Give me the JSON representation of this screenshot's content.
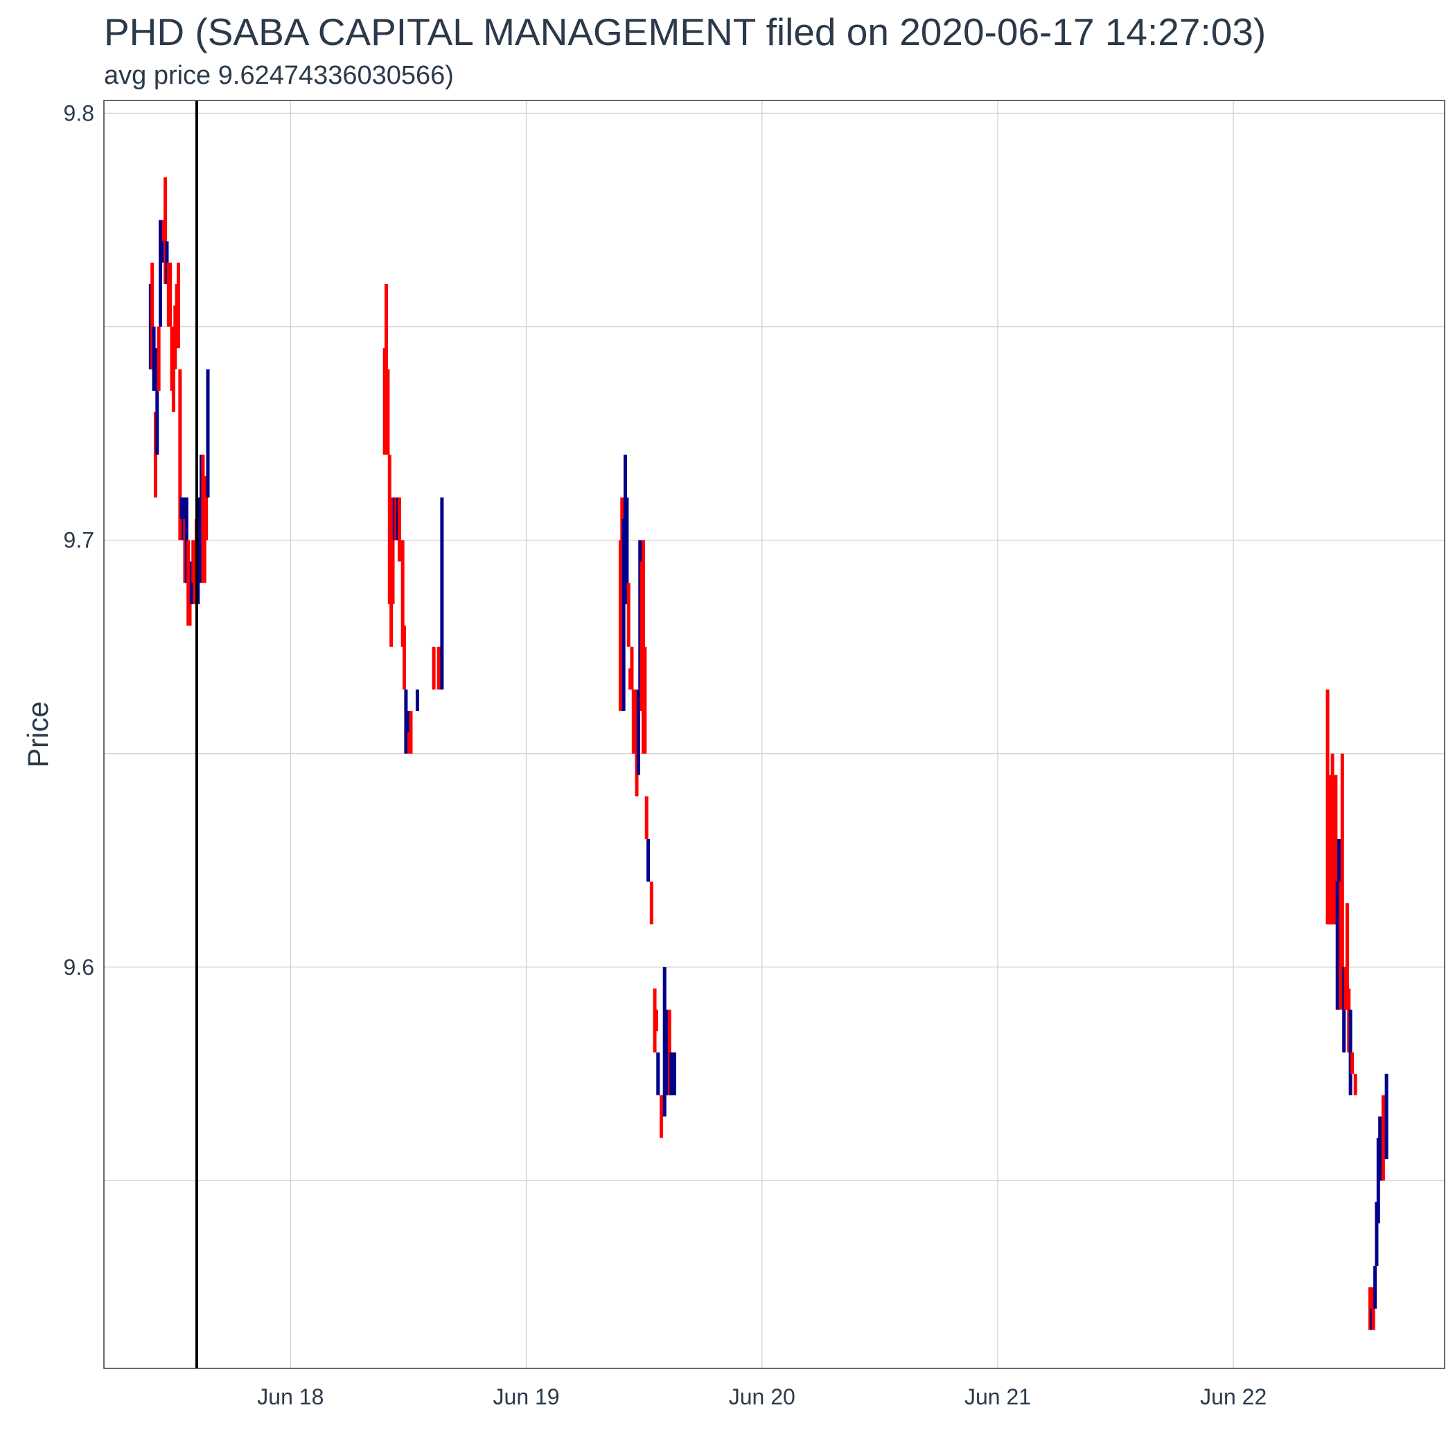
{
  "chart_data": {
    "type": "ohlc",
    "title": "PHD (SABA CAPITAL MANAGEMENT filed on 2020-06-17 14:27:03)",
    "subtitle": "avg price 9.62474336030566)",
    "ylabel": "Price",
    "xlabel": "",
    "ylim": [
      9.506,
      9.803
    ],
    "xlim": [
      "2020-06-17 05:00",
      "2020-06-22 21:30"
    ],
    "yticks": [
      9.6,
      9.7,
      9.8
    ],
    "ytick_labels": [
      "9.6",
      "9.7",
      "9.8"
    ],
    "xticks": [
      "2020-06-18 00:00",
      "2020-06-19 00:00",
      "2020-06-20 00:00",
      "2020-06-21 00:00",
      "2020-06-22 00:00"
    ],
    "xtick_labels": [
      "Jun 18",
      "Jun 19",
      "Jun 20",
      "Jun 21",
      "Jun 22"
    ],
    "filing_marker": "2020-06-17 14:27",
    "grid": true,
    "up_color": "#00008b",
    "down_color": "#ff0000",
    "bars": [
      {
        "t": "2020-06-17 09:45",
        "lo": 9.74,
        "hi": 9.76,
        "dir": "up"
      },
      {
        "t": "2020-06-17 09:55",
        "lo": 9.74,
        "hi": 9.765,
        "dir": "down"
      },
      {
        "t": "2020-06-17 10:05",
        "lo": 9.735,
        "hi": 9.75,
        "dir": "up"
      },
      {
        "t": "2020-06-17 10:15",
        "lo": 9.71,
        "hi": 9.73,
        "dir": "down"
      },
      {
        "t": "2020-06-17 10:25",
        "lo": 9.72,
        "hi": 9.745,
        "dir": "up"
      },
      {
        "t": "2020-06-17 10:35",
        "lo": 9.735,
        "hi": 9.75,
        "dir": "down"
      },
      {
        "t": "2020-06-17 10:45",
        "lo": 9.75,
        "hi": 9.775,
        "dir": "up"
      },
      {
        "t": "2020-06-17 10:55",
        "lo": 9.765,
        "hi": 9.775,
        "dir": "up"
      },
      {
        "t": "2020-06-17 11:05",
        "lo": 9.77,
        "hi": 9.775,
        "dir": "down"
      },
      {
        "t": "2020-06-17 11:15",
        "lo": 9.76,
        "hi": 9.785,
        "dir": "down"
      },
      {
        "t": "2020-06-17 11:25",
        "lo": 9.76,
        "hi": 9.77,
        "dir": "up"
      },
      {
        "t": "2020-06-17 11:35",
        "lo": 9.75,
        "hi": 9.765,
        "dir": "down"
      },
      {
        "t": "2020-06-17 11:45",
        "lo": 9.75,
        "hi": 9.765,
        "dir": "down"
      },
      {
        "t": "2020-06-17 11:55",
        "lo": 9.735,
        "hi": 9.75,
        "dir": "down"
      },
      {
        "t": "2020-06-17 12:05",
        "lo": 9.73,
        "hi": 9.74,
        "dir": "down"
      },
      {
        "t": "2020-06-17 12:15",
        "lo": 9.74,
        "hi": 9.755,
        "dir": "down"
      },
      {
        "t": "2020-06-17 12:25",
        "lo": 9.75,
        "hi": 9.76,
        "dir": "down"
      },
      {
        "t": "2020-06-17 12:35",
        "lo": 9.745,
        "hi": 9.765,
        "dir": "down"
      },
      {
        "t": "2020-06-17 12:45",
        "lo": 9.7,
        "hi": 9.74,
        "dir": "down"
      },
      {
        "t": "2020-06-17 12:55",
        "lo": 9.705,
        "hi": 9.71,
        "dir": "up"
      },
      {
        "t": "2020-06-17 13:05",
        "lo": 9.7,
        "hi": 9.71,
        "dir": "up"
      },
      {
        "t": "2020-06-17 13:15",
        "lo": 9.69,
        "hi": 9.705,
        "dir": "down"
      },
      {
        "t": "2020-06-17 13:25",
        "lo": 9.69,
        "hi": 9.71,
        "dir": "up"
      },
      {
        "t": "2020-06-17 13:35",
        "lo": 9.68,
        "hi": 9.7,
        "dir": "down"
      },
      {
        "t": "2020-06-17 13:45",
        "lo": 9.68,
        "hi": 9.695,
        "dir": "down"
      },
      {
        "t": "2020-06-17 13:55",
        "lo": 9.685,
        "hi": 9.695,
        "dir": "up"
      },
      {
        "t": "2020-06-17 14:05",
        "lo": 9.69,
        "hi": 9.7,
        "dir": "down"
      },
      {
        "t": "2020-06-17 14:15",
        "lo": 9.685,
        "hi": 9.7,
        "dir": "down"
      },
      {
        "t": "2020-06-17 14:25",
        "lo": 9.69,
        "hi": 9.705,
        "dir": "down"
      },
      {
        "t": "2020-06-17 14:35",
        "lo": 9.685,
        "hi": 9.71,
        "dir": "up"
      },
      {
        "t": "2020-06-17 14:45",
        "lo": 9.7,
        "hi": 9.71,
        "dir": "up"
      },
      {
        "t": "2020-06-17 14:55",
        "lo": 9.69,
        "hi": 9.72,
        "dir": "up"
      },
      {
        "t": "2020-06-17 15:05",
        "lo": 9.69,
        "hi": 9.72,
        "dir": "down"
      },
      {
        "t": "2020-06-17 15:15",
        "lo": 9.69,
        "hi": 9.715,
        "dir": "down"
      },
      {
        "t": "2020-06-17 15:25",
        "lo": 9.7,
        "hi": 9.715,
        "dir": "down"
      },
      {
        "t": "2020-06-17 15:35",
        "lo": 9.71,
        "hi": 9.74,
        "dir": "up"
      },
      {
        "t": "2020-06-18 09:35",
        "lo": 9.72,
        "hi": 9.745,
        "dir": "down"
      },
      {
        "t": "2020-06-18 09:45",
        "lo": 9.72,
        "hi": 9.76,
        "dir": "down"
      },
      {
        "t": "2020-06-18 09:55",
        "lo": 9.72,
        "hi": 9.74,
        "dir": "down"
      },
      {
        "t": "2020-06-18 10:05",
        "lo": 9.685,
        "hi": 9.72,
        "dir": "down"
      },
      {
        "t": "2020-06-18 10:15",
        "lo": 9.675,
        "hi": 9.705,
        "dir": "down"
      },
      {
        "t": "2020-06-18 10:25",
        "lo": 9.685,
        "hi": 9.71,
        "dir": "down"
      },
      {
        "t": "2020-06-18 10:35",
        "lo": 9.7,
        "hi": 9.71,
        "dir": "up"
      },
      {
        "t": "2020-06-18 10:45",
        "lo": 9.7,
        "hi": 9.71,
        "dir": "down"
      },
      {
        "t": "2020-06-18 10:55",
        "lo": 9.7,
        "hi": 9.71,
        "dir": "up"
      },
      {
        "t": "2020-06-18 11:05",
        "lo": 9.695,
        "hi": 9.71,
        "dir": "down"
      },
      {
        "t": "2020-06-18 11:25",
        "lo": 9.675,
        "hi": 9.7,
        "dir": "down"
      },
      {
        "t": "2020-06-18 11:35",
        "lo": 9.665,
        "hi": 9.68,
        "dir": "down"
      },
      {
        "t": "2020-06-18 11:45",
        "lo": 9.65,
        "hi": 9.665,
        "dir": "up"
      },
      {
        "t": "2020-06-18 11:55",
        "lo": 9.655,
        "hi": 9.66,
        "dir": "up"
      },
      {
        "t": "2020-06-18 12:05",
        "lo": 9.65,
        "hi": 9.655,
        "dir": "down"
      },
      {
        "t": "2020-06-18 12:15",
        "lo": 9.65,
        "hi": 9.66,
        "dir": "down"
      },
      {
        "t": "2020-06-18 12:55",
        "lo": 9.66,
        "hi": 9.665,
        "dir": "up"
      },
      {
        "t": "2020-06-18 14:35",
        "lo": 9.665,
        "hi": 9.675,
        "dir": "down"
      },
      {
        "t": "2020-06-18 15:05",
        "lo": 9.665,
        "hi": 9.675,
        "dir": "down"
      },
      {
        "t": "2020-06-18 15:25",
        "lo": 9.665,
        "hi": 9.71,
        "dir": "up"
      },
      {
        "t": "2020-06-19 09:35",
        "lo": 9.66,
        "hi": 9.7,
        "dir": "down"
      },
      {
        "t": "2020-06-19 09:45",
        "lo": 9.69,
        "hi": 9.71,
        "dir": "down"
      },
      {
        "t": "2020-06-19 09:55",
        "lo": 9.66,
        "hi": 9.705,
        "dir": "up"
      },
      {
        "t": "2020-06-19 10:05",
        "lo": 9.685,
        "hi": 9.72,
        "dir": "up"
      },
      {
        "t": "2020-06-19 10:15",
        "lo": 9.685,
        "hi": 9.71,
        "dir": "up"
      },
      {
        "t": "2020-06-19 10:25",
        "lo": 9.675,
        "hi": 9.69,
        "dir": "down"
      },
      {
        "t": "2020-06-19 10:35",
        "lo": 9.665,
        "hi": 9.67,
        "dir": "down"
      },
      {
        "t": "2020-06-19 10:45",
        "lo": 9.665,
        "hi": 9.675,
        "dir": "down"
      },
      {
        "t": "2020-06-19 10:55",
        "lo": 9.65,
        "hi": 9.665,
        "dir": "down"
      },
      {
        "t": "2020-06-19 11:05",
        "lo": 9.65,
        "hi": 9.665,
        "dir": "down"
      },
      {
        "t": "2020-06-19 11:15",
        "lo": 9.64,
        "hi": 9.66,
        "dir": "down"
      },
      {
        "t": "2020-06-19 11:25",
        "lo": 9.645,
        "hi": 9.665,
        "dir": "up"
      },
      {
        "t": "2020-06-19 11:35",
        "lo": 9.665,
        "hi": 9.7,
        "dir": "up"
      },
      {
        "t": "2020-06-19 11:45",
        "lo": 9.66,
        "hi": 9.695,
        "dir": "down"
      },
      {
        "t": "2020-06-19 11:55",
        "lo": 9.65,
        "hi": 9.7,
        "dir": "down"
      },
      {
        "t": "2020-06-19 12:05",
        "lo": 9.65,
        "hi": 9.675,
        "dir": "down"
      },
      {
        "t": "2020-06-19 12:15",
        "lo": 9.63,
        "hi": 9.64,
        "dir": "down"
      },
      {
        "t": "2020-06-19 12:25",
        "lo": 9.62,
        "hi": 9.63,
        "dir": "up"
      },
      {
        "t": "2020-06-19 12:45",
        "lo": 9.61,
        "hi": 9.62,
        "dir": "down"
      },
      {
        "t": "2020-06-19 13:05",
        "lo": 9.58,
        "hi": 9.595,
        "dir": "down"
      },
      {
        "t": "2020-06-19 13:15",
        "lo": 9.585,
        "hi": 9.59,
        "dir": "down"
      },
      {
        "t": "2020-06-19 13:25",
        "lo": 9.57,
        "hi": 9.58,
        "dir": "up"
      },
      {
        "t": "2020-06-19 13:45",
        "lo": 9.56,
        "hi": 9.57,
        "dir": "down"
      },
      {
        "t": "2020-06-19 13:55",
        "lo": 9.565,
        "hi": 9.57,
        "dir": "down"
      },
      {
        "t": "2020-06-19 14:05",
        "lo": 9.565,
        "hi": 9.6,
        "dir": "up"
      },
      {
        "t": "2020-06-19 14:15",
        "lo": 9.57,
        "hi": 9.59,
        "dir": "up"
      },
      {
        "t": "2020-06-19 14:25",
        "lo": 9.57,
        "hi": 9.58,
        "dir": "up"
      },
      {
        "t": "2020-06-19 14:35",
        "lo": 9.57,
        "hi": 9.59,
        "dir": "down"
      },
      {
        "t": "2020-06-19 14:45",
        "lo": 9.57,
        "hi": 9.58,
        "dir": "up"
      },
      {
        "t": "2020-06-19 14:55",
        "lo": 9.57,
        "hi": 9.58,
        "dir": "up"
      },
      {
        "t": "2020-06-19 15:05",
        "lo": 9.57,
        "hi": 9.58,
        "dir": "up"
      },
      {
        "t": "2020-06-22 09:35",
        "lo": 9.61,
        "hi": 9.665,
        "dir": "down"
      },
      {
        "t": "2020-06-22 09:45",
        "lo": 9.61,
        "hi": 9.645,
        "dir": "down"
      },
      {
        "t": "2020-06-22 09:55",
        "lo": 9.61,
        "hi": 9.62,
        "dir": "down"
      },
      {
        "t": "2020-06-22 10:05",
        "lo": 9.61,
        "hi": 9.65,
        "dir": "down"
      },
      {
        "t": "2020-06-22 10:15",
        "lo": 9.61,
        "hi": 9.62,
        "dir": "down"
      },
      {
        "t": "2020-06-22 10:25",
        "lo": 9.61,
        "hi": 9.645,
        "dir": "down"
      },
      {
        "t": "2020-06-22 10:35",
        "lo": 9.59,
        "hi": 9.62,
        "dir": "up"
      },
      {
        "t": "2020-06-22 10:45",
        "lo": 9.59,
        "hi": 9.63,
        "dir": "up"
      },
      {
        "t": "2020-06-22 10:55",
        "lo": 9.59,
        "hi": 9.62,
        "dir": "down"
      },
      {
        "t": "2020-06-22 11:05",
        "lo": 9.59,
        "hi": 9.65,
        "dir": "down"
      },
      {
        "t": "2020-06-22 11:15",
        "lo": 9.58,
        "hi": 9.6,
        "dir": "up"
      },
      {
        "t": "2020-06-22 11:25",
        "lo": 9.59,
        "hi": 9.6,
        "dir": "down"
      },
      {
        "t": "2020-06-22 11:35",
        "lo": 9.59,
        "hi": 9.615,
        "dir": "down"
      },
      {
        "t": "2020-06-22 11:45",
        "lo": 9.58,
        "hi": 9.595,
        "dir": "down"
      },
      {
        "t": "2020-06-22 11:55",
        "lo": 9.57,
        "hi": 9.59,
        "dir": "up"
      },
      {
        "t": "2020-06-22 12:05",
        "lo": 9.575,
        "hi": 9.58,
        "dir": "down"
      },
      {
        "t": "2020-06-22 12:25",
        "lo": 9.57,
        "hi": 9.575,
        "dir": "down"
      },
      {
        "t": "2020-06-22 13:55",
        "lo": 9.515,
        "hi": 9.525,
        "dir": "down"
      },
      {
        "t": "2020-06-22 14:05",
        "lo": 9.515,
        "hi": 9.52,
        "dir": "up"
      },
      {
        "t": "2020-06-22 14:15",
        "lo": 9.515,
        "hi": 9.525,
        "dir": "down"
      },
      {
        "t": "2020-06-22 14:25",
        "lo": 9.52,
        "hi": 9.53,
        "dir": "up"
      },
      {
        "t": "2020-06-22 14:35",
        "lo": 9.53,
        "hi": 9.545,
        "dir": "up"
      },
      {
        "t": "2020-06-22 14:45",
        "lo": 9.54,
        "hi": 9.56,
        "dir": "up"
      },
      {
        "t": "2020-06-22 14:55",
        "lo": 9.55,
        "hi": 9.565,
        "dir": "up"
      },
      {
        "t": "2020-06-22 15:05",
        "lo": 9.55,
        "hi": 9.56,
        "dir": "up"
      },
      {
        "t": "2020-06-22 15:15",
        "lo": 9.55,
        "hi": 9.57,
        "dir": "down"
      },
      {
        "t": "2020-06-22 15:25",
        "lo": 9.56,
        "hi": 9.57,
        "dir": "down"
      },
      {
        "t": "2020-06-22 15:35",
        "lo": 9.555,
        "hi": 9.575,
        "dir": "up"
      }
    ]
  }
}
